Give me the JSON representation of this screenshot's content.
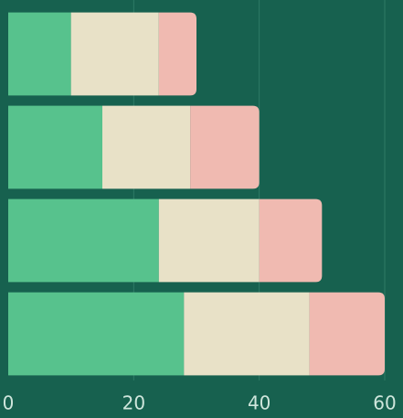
{
  "chart_data": {
    "type": "stacked-barh",
    "categories": [
      null,
      null,
      null,
      null
    ],
    "series": [
      {
        "color": "#57c28d",
        "values": [
          10,
          15,
          24,
          28
        ]
      },
      {
        "color": "#e8e1c7",
        "values": [
          14,
          14,
          16,
          20
        ]
      },
      {
        "color": "#f0bab1",
        "values": [
          6,
          11,
          10,
          12
        ]
      }
    ],
    "xlim": [
      0,
      60
    ],
    "xticks": [
      0,
      20,
      40,
      60
    ],
    "grid": true
  }
}
